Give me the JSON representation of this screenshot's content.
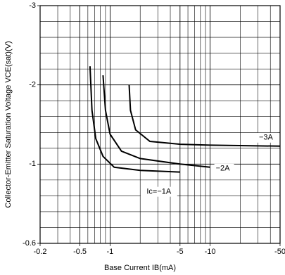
{
  "chart_data": {
    "type": "line",
    "x_label": "Base Current IB(mA)",
    "y_label": "Collector-Emitter Saturation Voltage VCE(sat)(V)",
    "x_log_scale": true,
    "y_log_scale": true,
    "grid": true,
    "minor_grid": true,
    "xlim": [
      -0.2,
      -50
    ],
    "ylim": [
      -0.6,
      -3
    ],
    "xticks": [
      -0.2,
      -0.5,
      -1,
      -5,
      -10,
      -50
    ],
    "yticks": [
      -0.6,
      -1,
      -2,
      -3
    ],
    "series": [
      {
        "name": "Ic=−1A",
        "color": "#000000",
        "x": [
          -0.63,
          -0.66,
          -0.72,
          -0.85,
          -1.1,
          -2,
          -5
        ],
        "values": [
          -2.2,
          -1.6,
          -1.25,
          -1.07,
          -0.98,
          -0.96,
          -0.95
        ]
      },
      {
        "name": "−2A",
        "color": "#000000",
        "x": [
          -0.85,
          -0.9,
          -1,
          -1.3,
          -2,
          -5,
          -10
        ],
        "values": [
          -2.1,
          -1.6,
          -1.3,
          -1.12,
          -1.05,
          -1.0,
          -0.98
        ]
      },
      {
        "name": "−3A",
        "color": "#000000",
        "x": [
          -1.55,
          -1.6,
          -1.8,
          -2.5,
          -5,
          -10,
          -50
        ],
        "values": [
          -2.0,
          -1.6,
          -1.35,
          -1.22,
          -1.19,
          -1.18,
          -1.17
        ]
      }
    ]
  }
}
